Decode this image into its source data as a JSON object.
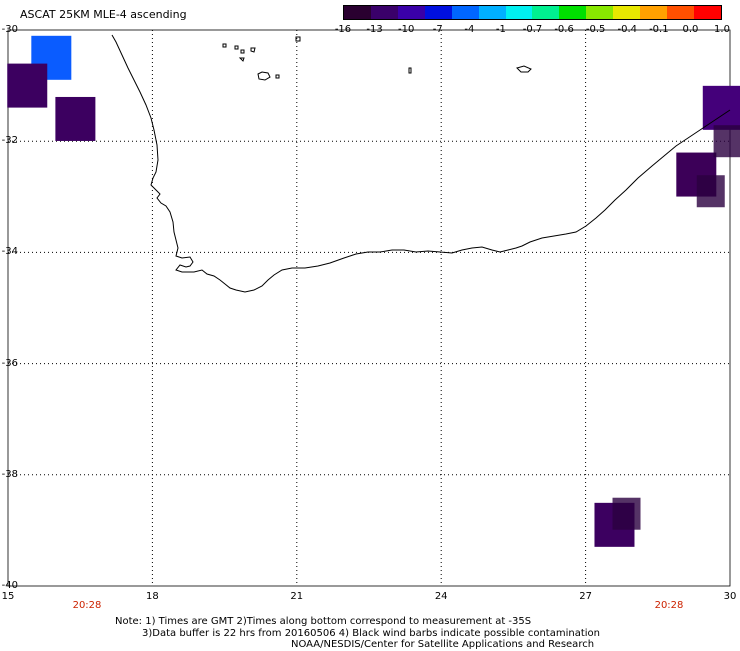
{
  "title": "ASCAT 25KM MLE-4 ascending",
  "colorbar": {
    "colors": [
      "#2a0030",
      "#3a006a",
      "#3a00a8",
      "#0010e0",
      "#0066ff",
      "#00b0ff",
      "#00f0f0",
      "#00f090",
      "#00e000",
      "#88e800",
      "#e8e800",
      "#ffa000",
      "#ff5000",
      "#ff0000"
    ],
    "labels": [
      "-16",
      "-13",
      "-10",
      "-7",
      "-4",
      "-1",
      "-0.7",
      "-0.6",
      "-0.5",
      "-0.4",
      "-0.1",
      "0.0",
      "1.0"
    ]
  },
  "axes": {
    "lat_labels": [
      "-30",
      "-32",
      "-34",
      "-36",
      "-38",
      "-40"
    ],
    "lon_labels": [
      "15",
      "18",
      "21",
      "24",
      "27",
      "30"
    ]
  },
  "times": [
    "20:28",
    "20:28"
  ],
  "notes": {
    "line1": "Note: 1) Times are GMT 2)Times along bottom correspond to measurement at -35S",
    "line2": "3)Data buffer is 22 hrs from 20160506 4) Black wind barbs indicate possible contamination",
    "line3": "NOAA/NESDIS/Center for Satellite Applications and Research"
  },
  "data_cells": [
    {
      "lon": 15.9,
      "lat": -30.5,
      "value": "-7",
      "color": "#0a5cff"
    },
    {
      "lon": 15.4,
      "lat": -31.0,
      "value": "-13",
      "color": "#3c0060"
    },
    {
      "lon": 16.4,
      "lat": -31.6,
      "value": "-13",
      "color": "#3c0060"
    },
    {
      "lon": 29.85,
      "lat": -31.4,
      "value": "-10",
      "color": "#44007a"
    },
    {
      "lon": 29.3,
      "lat": -32.6,
      "value": "-13",
      "color": "#3c0058"
    },
    {
      "lon": 27.6,
      "lat": -38.9,
      "value": "-13",
      "color": "#3c0060"
    }
  ]
}
